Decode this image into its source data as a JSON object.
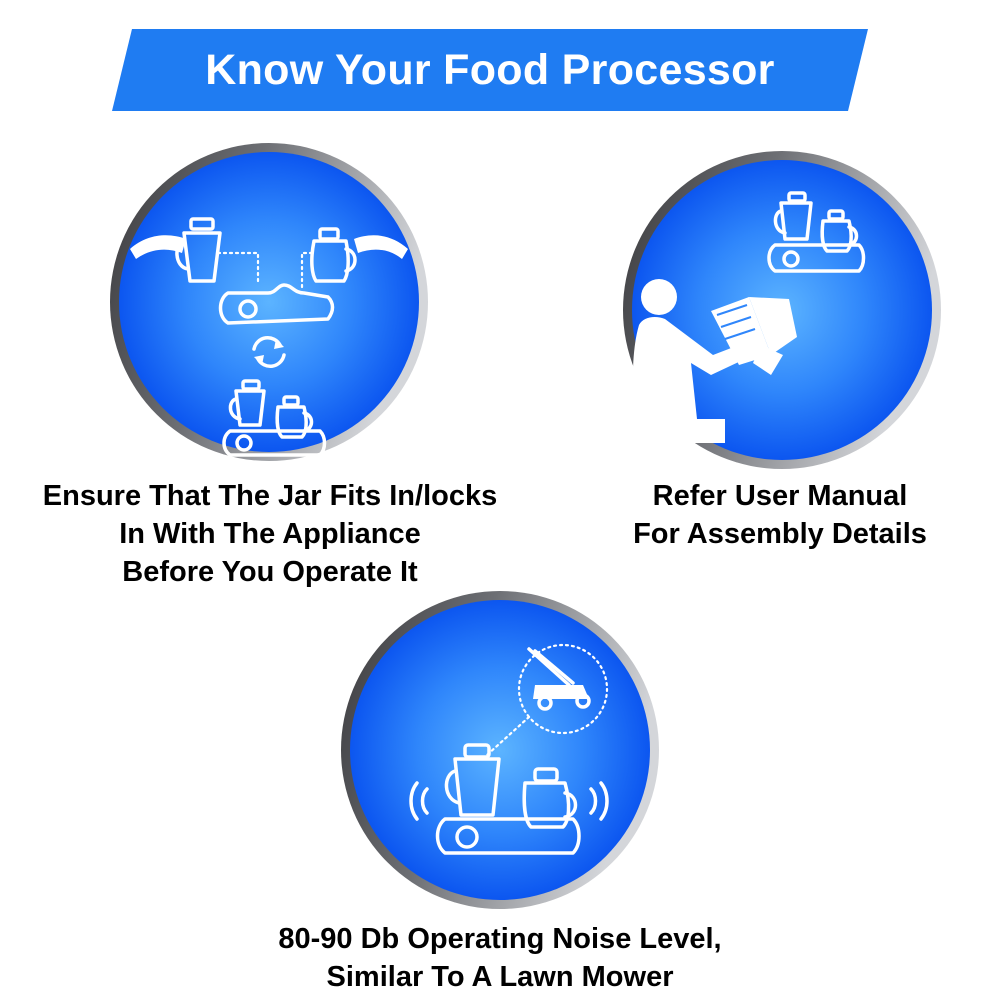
{
  "title": "Know Your Food Processor",
  "colors": {
    "banner": "#1f7cf2",
    "circle_center": "#5cb4ff",
    "circle_edge": "#0c56f0",
    "ring_dark": "#3a3a3d",
    "ring_light": "#b9bbbf"
  },
  "panels": [
    {
      "id": "jar-fit",
      "icons": [
        "jar-icon",
        "bowl-jar-icon",
        "motor-base-icon",
        "rotate-arrows-icon",
        "assembled-processor-icon"
      ],
      "caption_lines": [
        "Ensure That The Jar Fits In/locks",
        "In With The Appliance",
        "Before You Operate It"
      ]
    },
    {
      "id": "user-manual",
      "icons": [
        "assembled-processor-icon",
        "person-reading-manual-icon"
      ],
      "caption_lines": [
        "Refer User Manual",
        "For Assembly Details"
      ]
    },
    {
      "id": "noise-level",
      "icons": [
        "lawn-mower-icon",
        "assembled-processor-icon",
        "sound-waves-icon"
      ],
      "caption_lines": [
        "80-90 Db Operating Noise Level,",
        "Similar To A Lawn Mower"
      ]
    }
  ]
}
